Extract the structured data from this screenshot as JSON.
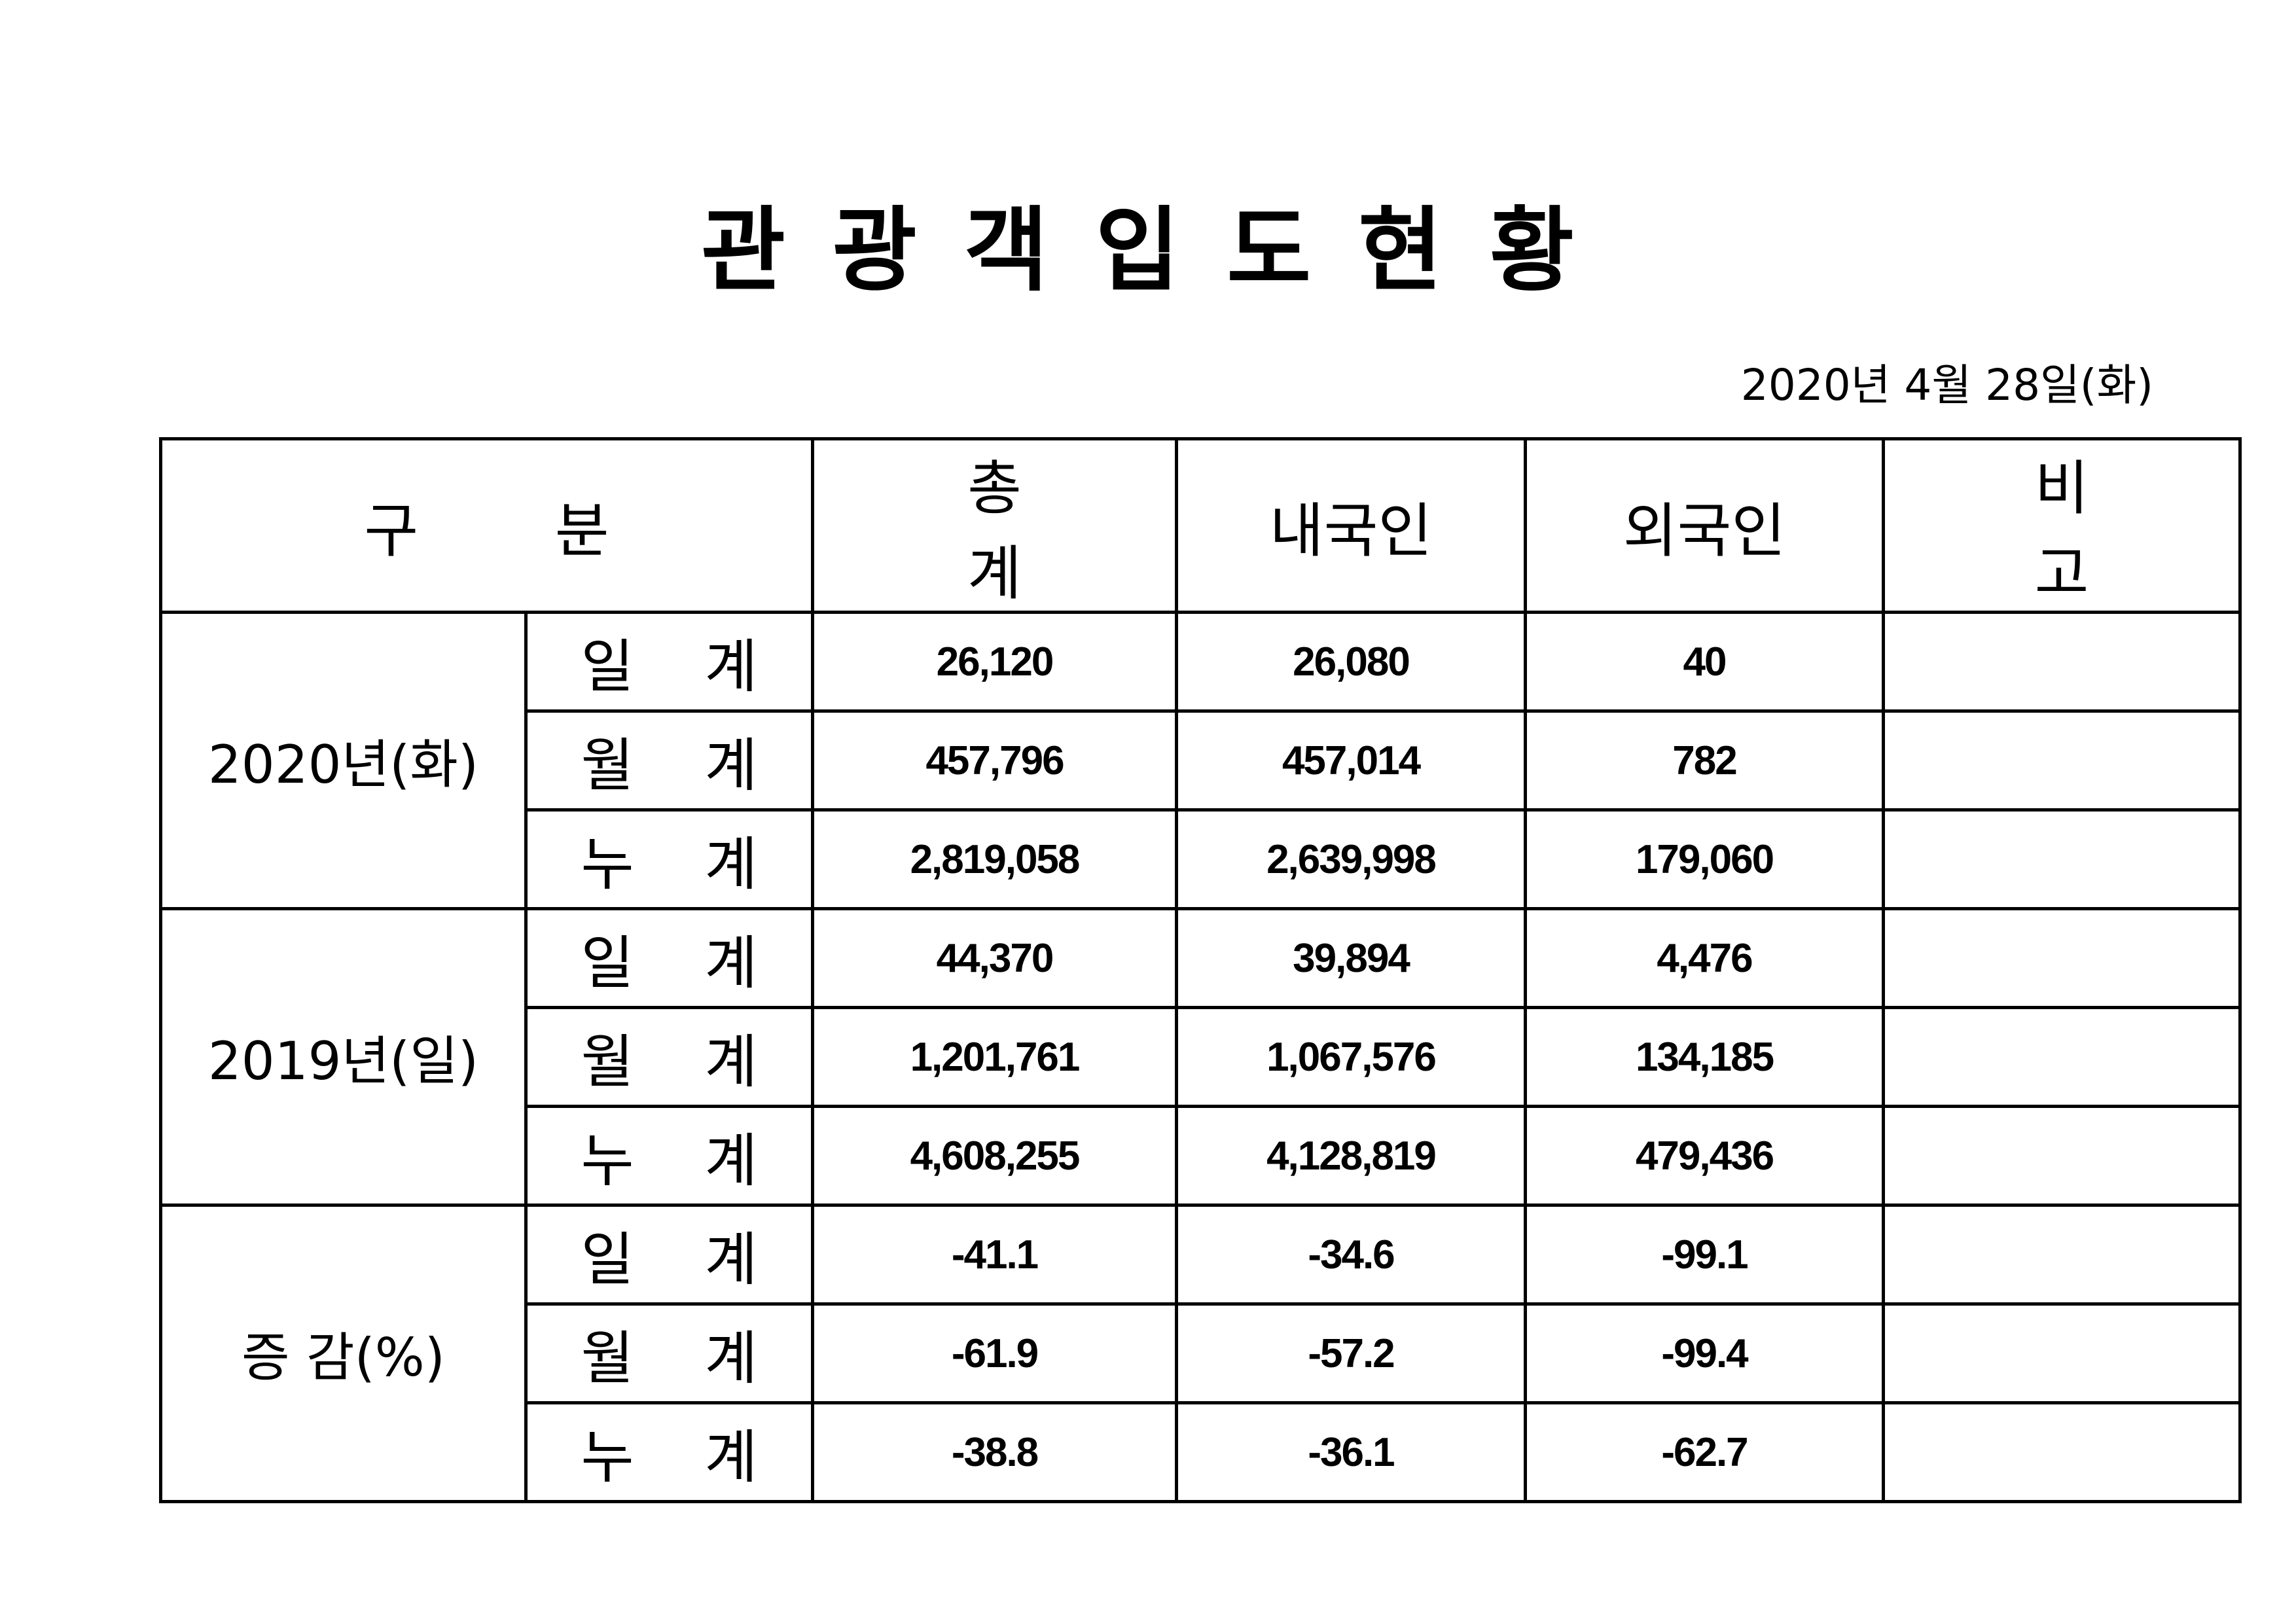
{
  "title": "관광객입도현황",
  "date": "2020년  4월  28일(화)",
  "headers": [
    "구  분",
    "총  계",
    "내국인",
    "외국인",
    "비  고"
  ],
  "groups": [
    {
      "label": "2020년(화)",
      "rows": [
        {
          "label": "일 계",
          "total": "26,120",
          "domestic": "26,080",
          "foreign": "40",
          "note": ""
        },
        {
          "label": "월 계",
          "total": "457,796",
          "domestic": "457,014",
          "foreign": "782",
          "note": ""
        },
        {
          "label": "누 계",
          "total": "2,819,058",
          "domestic": "2,639,998",
          "foreign": "179,060",
          "note": ""
        }
      ]
    },
    {
      "label": "2019년(일)",
      "rows": [
        {
          "label": "일 계",
          "total": "44,370",
          "domestic": "39,894",
          "foreign": "4,476",
          "note": ""
        },
        {
          "label": "월 계",
          "total": "1,201,761",
          "domestic": "1,067,576",
          "foreign": "134,185",
          "note": ""
        },
        {
          "label": "누 계",
          "total": "4,608,255",
          "domestic": "4,128,819",
          "foreign": "479,436",
          "note": ""
        }
      ]
    },
    {
      "label": "증 감(%)",
      "rows": [
        {
          "label": "일 계",
          "total": "-41.1",
          "domestic": "-34.6",
          "foreign": "-99.1",
          "note": ""
        },
        {
          "label": "월 계",
          "total": "-61.9",
          "domestic": "-57.2",
          "foreign": "-99.4",
          "note": ""
        },
        {
          "label": "누 계",
          "total": "-38.8",
          "domestic": "-36.1",
          "foreign": "-62.7",
          "note": ""
        }
      ]
    }
  ]
}
